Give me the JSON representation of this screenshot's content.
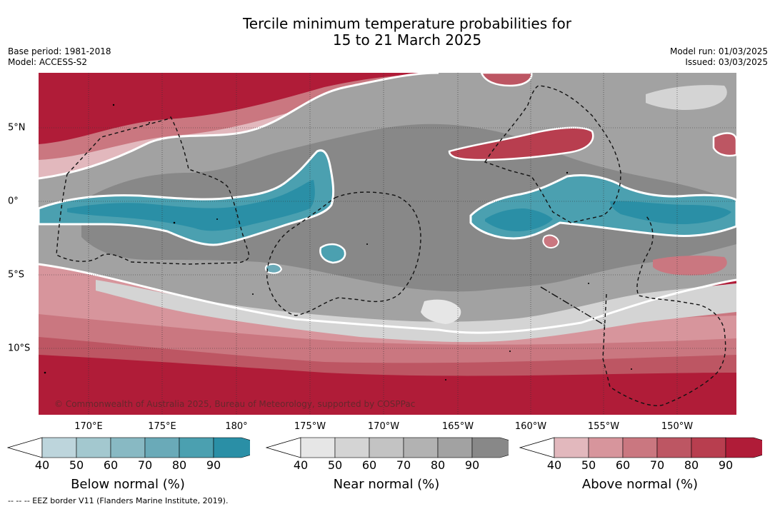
{
  "title": {
    "line1": "Tercile minimum temperature probabilities for",
    "line2": "15 to 21 March 2025"
  },
  "meta_left": {
    "base_period": "Base period: 1981-2018",
    "model": "Model: ACCESS-S2"
  },
  "meta_right": {
    "model_run": "Model run: 01/03/2025",
    "issued": "Issued: 03/03/2025"
  },
  "map": {
    "copyright": "© Commonwealth of Australia 2025, Bureau of Meteorology, supported by COSPPac",
    "longitude_labels": [
      "170°E",
      "175°E",
      "180°",
      "175°W",
      "170°W",
      "165°W",
      "160°W",
      "155°W",
      "150°W"
    ],
    "latitude_labels": [
      "5°N",
      "0°",
      "5°S",
      "10°S"
    ]
  },
  "colorbars": [
    {
      "name": "below",
      "label": "Below normal (%)",
      "ticks": [
        "40",
        "50",
        "60",
        "70",
        "80",
        "90"
      ],
      "colors": [
        "#bdd5dc",
        "#a3c8cf",
        "#88b9c3",
        "#6aaab8",
        "#4ba0b0",
        "#2a8fa6"
      ]
    },
    {
      "name": "near",
      "label": "Near normal (%)",
      "ticks": [
        "40",
        "50",
        "60",
        "70",
        "80",
        "90"
      ],
      "colors": [
        "#e6e6e6",
        "#d4d4d4",
        "#c3c3c3",
        "#b2b2b2",
        "#a2a2a2",
        "#888888"
      ]
    },
    {
      "name": "above",
      "label": "Above normal (%)",
      "ticks": [
        "40",
        "50",
        "60",
        "70",
        "80",
        "90"
      ],
      "colors": [
        "#e2b8bd",
        "#d7959c",
        "#ca7780",
        "#bd5663",
        "#b83e4f",
        "#b01c38"
      ]
    }
  ],
  "footnote": "--  --  -- EEZ border V11 (Flanders Marine Institute, 2019)."
}
